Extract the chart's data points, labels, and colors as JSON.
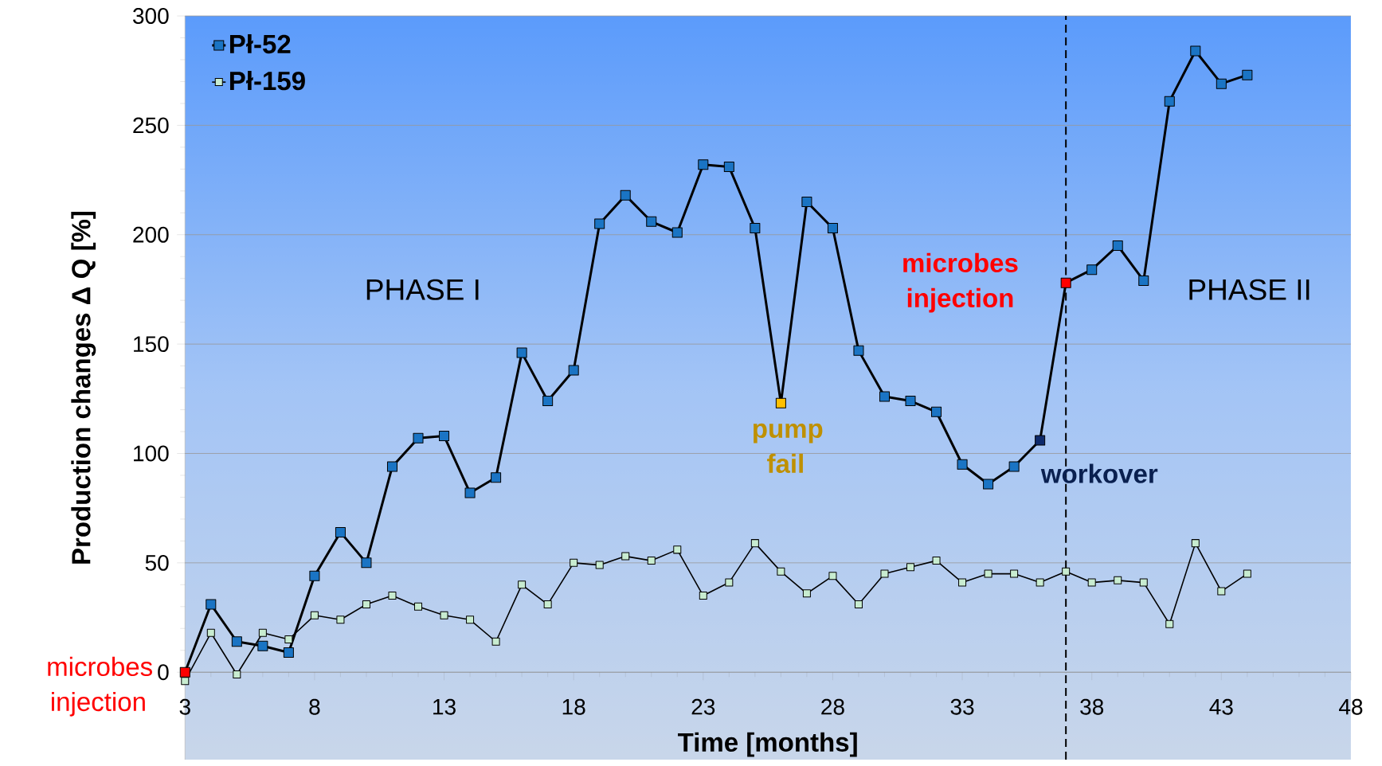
{
  "chart_data": {
    "type": "line",
    "xlabel": "Time  [months]",
    "ylabel": "Production changes  Δ Q [%]",
    "xlim": [
      3,
      48
    ],
    "xticks": [
      3,
      8,
      13,
      18,
      23,
      28,
      33,
      38,
      43,
      48
    ],
    "ylim": [
      -40,
      300
    ],
    "yticks": [
      0,
      50,
      100,
      150,
      200,
      250,
      300
    ],
    "grid": "y",
    "legend": "top left",
    "line_style": "solid",
    "x": [
      3,
      4,
      5,
      6,
      7,
      8,
      9,
      10,
      11,
      12,
      13,
      14,
      15,
      16,
      17,
      18,
      19,
      20,
      21,
      22,
      23,
      24,
      25,
      26,
      27,
      28,
      29,
      30,
      31,
      32,
      33,
      34,
      35,
      36,
      37,
      38,
      39,
      40,
      41,
      42,
      43,
      44
    ],
    "series": [
      {
        "name": "Pł-52",
        "color": "#1a74c4",
        "marker": "square",
        "values": [
          0,
          31,
          14,
          12,
          9,
          44,
          64,
          50,
          94,
          107,
          108,
          82,
          89,
          146,
          124,
          138,
          205,
          218,
          206,
          201,
          232,
          231,
          203,
          123,
          215,
          203,
          147,
          126,
          124,
          119,
          95,
          86,
          94,
          106,
          178,
          184,
          195,
          179,
          261,
          284,
          269,
          273
        ],
        "colors": [
          "#ff0000",
          "#1a74c4",
          "#1a74c4",
          "#1a74c4",
          "#1a74c4",
          "#1a74c4",
          "#1a74c4",
          "#1a74c4",
          "#1a74c4",
          "#1a74c4",
          "#1a74c4",
          "#1a74c4",
          "#1a74c4",
          "#1a74c4",
          "#1a74c4",
          "#1a74c4",
          "#1a74c4",
          "#1a74c4",
          "#1a74c4",
          "#1a74c4",
          "#1a74c4",
          "#1a74c4",
          "#1a74c4",
          "#ffc000",
          "#1a74c4",
          "#1a74c4",
          "#1a74c4",
          "#1a74c4",
          "#1a74c4",
          "#1a74c4",
          "#1a74c4",
          "#1a74c4",
          "#1a74c4",
          "#0e2a6b",
          "#ff0000",
          "#1a74c4",
          "#1a74c4",
          "#1a74c4",
          "#1a74c4",
          "#1a74c4",
          "#1a74c4",
          "#1a74c4"
        ]
      },
      {
        "name": "Pł-159",
        "color": "#c8ecd0",
        "marker": "square",
        "values": [
          -4,
          18,
          -1,
          18,
          15,
          26,
          24,
          31,
          35,
          30,
          26,
          24,
          14,
          40,
          31,
          50,
          49,
          53,
          51,
          56,
          35,
          41,
          59,
          46,
          36,
          44,
          31,
          45,
          48,
          51,
          41,
          45,
          45,
          41,
          46,
          41,
          42,
          41,
          22,
          59,
          37,
          45
        ]
      }
    ],
    "ref_lines": [
      {
        "axis": "x",
        "value": 37,
        "line_style": "dashed",
        "color": "#000000"
      }
    ],
    "annotations": [
      {
        "text": "microbes injection",
        "x": 3,
        "y": 0
      },
      {
        "text": "pump fail",
        "x": 26,
        "y": 123
      },
      {
        "text": "workover",
        "x": 36,
        "y": 106
      },
      {
        "text": "microbes injection",
        "x": 37,
        "y": 178
      },
      "PHASE I",
      "PHASE II"
    ]
  }
}
